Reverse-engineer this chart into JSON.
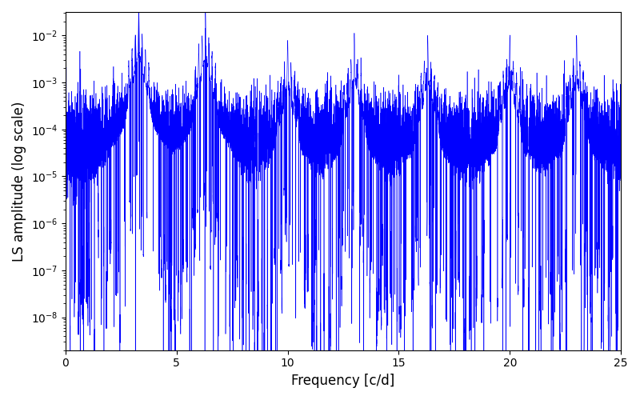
{
  "line_color": "#0000ff",
  "xlabel": "Frequency [c/d]",
  "ylabel": "LS amplitude (log scale)",
  "xlim": [
    0,
    25
  ],
  "ylim_log": [
    -8.7,
    -1.5
  ],
  "xfreq_min": 0.001,
  "xfreq_max": 25.0,
  "num_points": 15000,
  "peak_freqs": [
    3.3,
    6.3,
    10.0,
    13.0,
    16.3,
    20.0,
    23.0
  ],
  "peak_amps": [
    0.035,
    0.03,
    0.007,
    0.01,
    0.009,
    0.009,
    0.009
  ],
  "noise_floor_log_mean": -4.3,
  "noise_floor_log_std": 0.5,
  "line_width": 0.4,
  "figsize": [
    8.0,
    5.0
  ],
  "dpi": 100,
  "bg_color": "#ffffff",
  "seed": 12345
}
